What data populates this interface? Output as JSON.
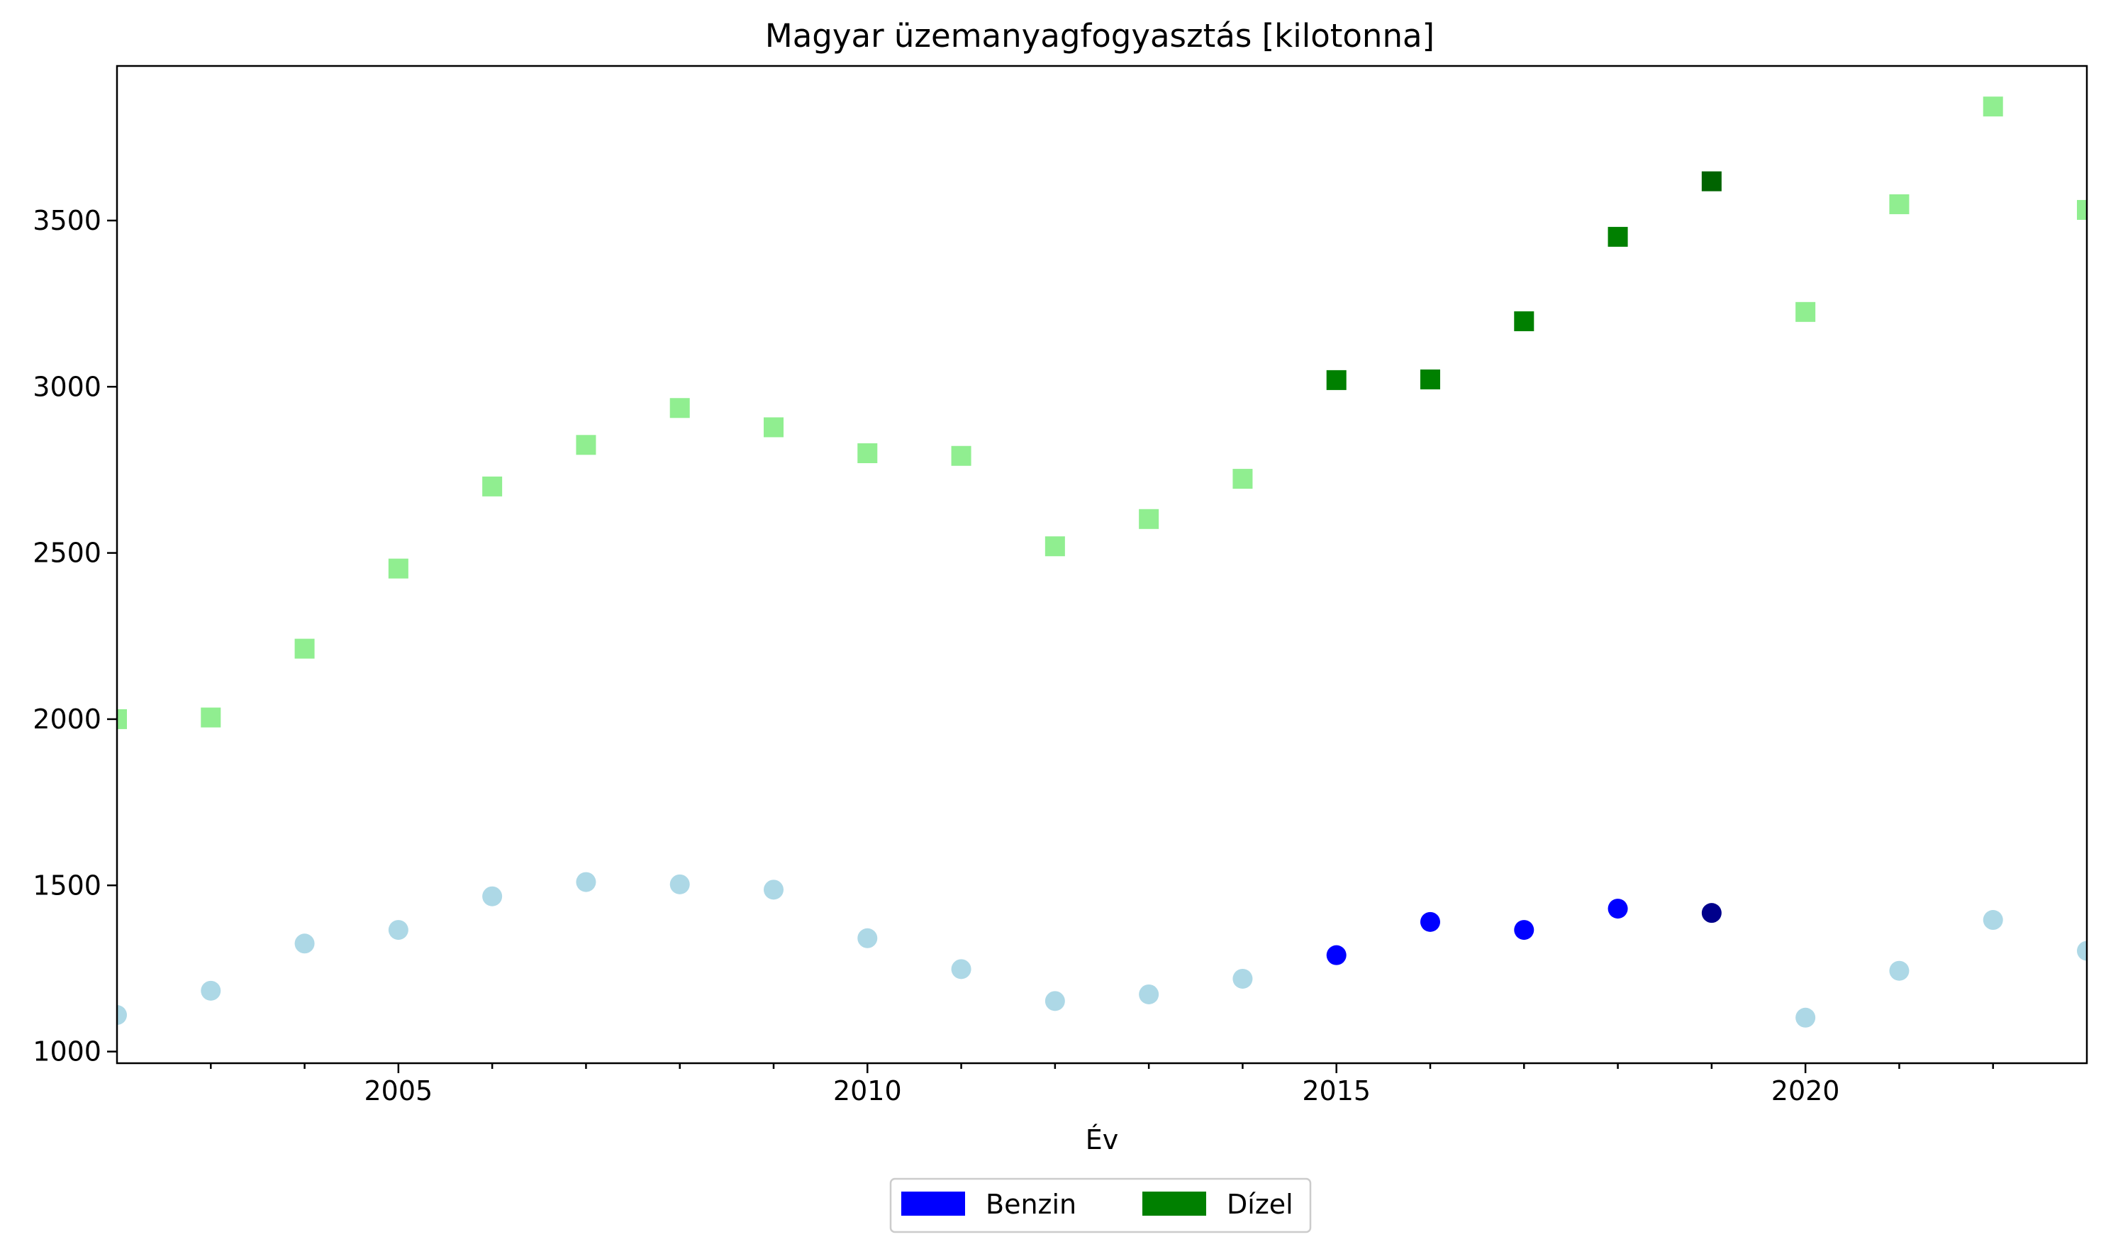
{
  "chart_data": {
    "type": "scatter",
    "title": "Magyar üzemanyagfogyasztás [kilotonna]",
    "xlabel": "Év",
    "ylabel": "",
    "xlim": [
      2002,
      2023
    ],
    "ylim": [
      965,
      3965
    ],
    "x_ticks_major": [
      2005,
      2010,
      2015,
      2020
    ],
    "x_ticks_minor": [
      2003,
      2004,
      2006,
      2007,
      2008,
      2009,
      2011,
      2012,
      2013,
      2014,
      2016,
      2017,
      2018,
      2019,
      2021,
      2022
    ],
    "y_ticks": [
      1000,
      1500,
      2000,
      2500,
      3000,
      3500
    ],
    "grid": false,
    "legend_position": "bottom-center",
    "legend": [
      {
        "label": "Benzin",
        "color": "#0000ff"
      },
      {
        "label": "Dízel",
        "color": "#008000"
      }
    ],
    "series": [
      {
        "name": "Benzin",
        "marker": "circle",
        "points": [
          {
            "x": 2002,
            "y": 1110,
            "color": "#add8e6"
          },
          {
            "x": 2003,
            "y": 1183,
            "color": "#add8e6"
          },
          {
            "x": 2004,
            "y": 1325,
            "color": "#add8e6"
          },
          {
            "x": 2005,
            "y": 1366,
            "color": "#add8e6"
          },
          {
            "x": 2006,
            "y": 1467,
            "color": "#add8e6"
          },
          {
            "x": 2007,
            "y": 1510,
            "color": "#add8e6"
          },
          {
            "x": 2008,
            "y": 1503,
            "color": "#add8e6"
          },
          {
            "x": 2009,
            "y": 1487,
            "color": "#add8e6"
          },
          {
            "x": 2010,
            "y": 1341,
            "color": "#add8e6"
          },
          {
            "x": 2011,
            "y": 1248,
            "color": "#add8e6"
          },
          {
            "x": 2012,
            "y": 1152,
            "color": "#add8e6"
          },
          {
            "x": 2013,
            "y": 1172,
            "color": "#add8e6"
          },
          {
            "x": 2014,
            "y": 1219,
            "color": "#add8e6"
          },
          {
            "x": 2015,
            "y": 1290,
            "color": "#0000ff"
          },
          {
            "x": 2016,
            "y": 1390,
            "color": "#0000ff"
          },
          {
            "x": 2017,
            "y": 1366,
            "color": "#0000ff"
          },
          {
            "x": 2018,
            "y": 1430,
            "color": "#0000ff"
          },
          {
            "x": 2019,
            "y": 1417,
            "color": "#00008b"
          },
          {
            "x": 2020,
            "y": 1102,
            "color": "#add8e6"
          },
          {
            "x": 2021,
            "y": 1243,
            "color": "#add8e6"
          },
          {
            "x": 2022,
            "y": 1396,
            "color": "#add8e6"
          },
          {
            "x": 2023,
            "y": 1303,
            "color": "#add8e6"
          }
        ]
      },
      {
        "name": "Dízel",
        "marker": "square",
        "points": [
          {
            "x": 2002,
            "y": 2000,
            "color": "#90ee90"
          },
          {
            "x": 2003,
            "y": 2005,
            "color": "#90ee90"
          },
          {
            "x": 2004,
            "y": 2212,
            "color": "#90ee90"
          },
          {
            "x": 2005,
            "y": 2453,
            "color": "#90ee90"
          },
          {
            "x": 2006,
            "y": 2700,
            "color": "#90ee90"
          },
          {
            "x": 2007,
            "y": 2825,
            "color": "#90ee90"
          },
          {
            "x": 2008,
            "y": 2936,
            "color": "#90ee90"
          },
          {
            "x": 2009,
            "y": 2878,
            "color": "#90ee90"
          },
          {
            "x": 2010,
            "y": 2800,
            "color": "#90ee90"
          },
          {
            "x": 2011,
            "y": 2792,
            "color": "#90ee90"
          },
          {
            "x": 2012,
            "y": 2520,
            "color": "#90ee90"
          },
          {
            "x": 2013,
            "y": 2602,
            "color": "#90ee90"
          },
          {
            "x": 2014,
            "y": 2723,
            "color": "#90ee90"
          },
          {
            "x": 2015,
            "y": 3020,
            "color": "#008000"
          },
          {
            "x": 2016,
            "y": 3022,
            "color": "#008000"
          },
          {
            "x": 2017,
            "y": 3197,
            "color": "#008000"
          },
          {
            "x": 2018,
            "y": 3451,
            "color": "#008000"
          },
          {
            "x": 2019,
            "y": 3618,
            "color": "#006400"
          },
          {
            "x": 2020,
            "y": 3225,
            "color": "#90ee90"
          },
          {
            "x": 2021,
            "y": 3549,
            "color": "#90ee90"
          },
          {
            "x": 2022,
            "y": 3843,
            "color": "#90ee90"
          },
          {
            "x": 2023,
            "y": 3532,
            "color": "#90ee90"
          }
        ]
      }
    ]
  }
}
